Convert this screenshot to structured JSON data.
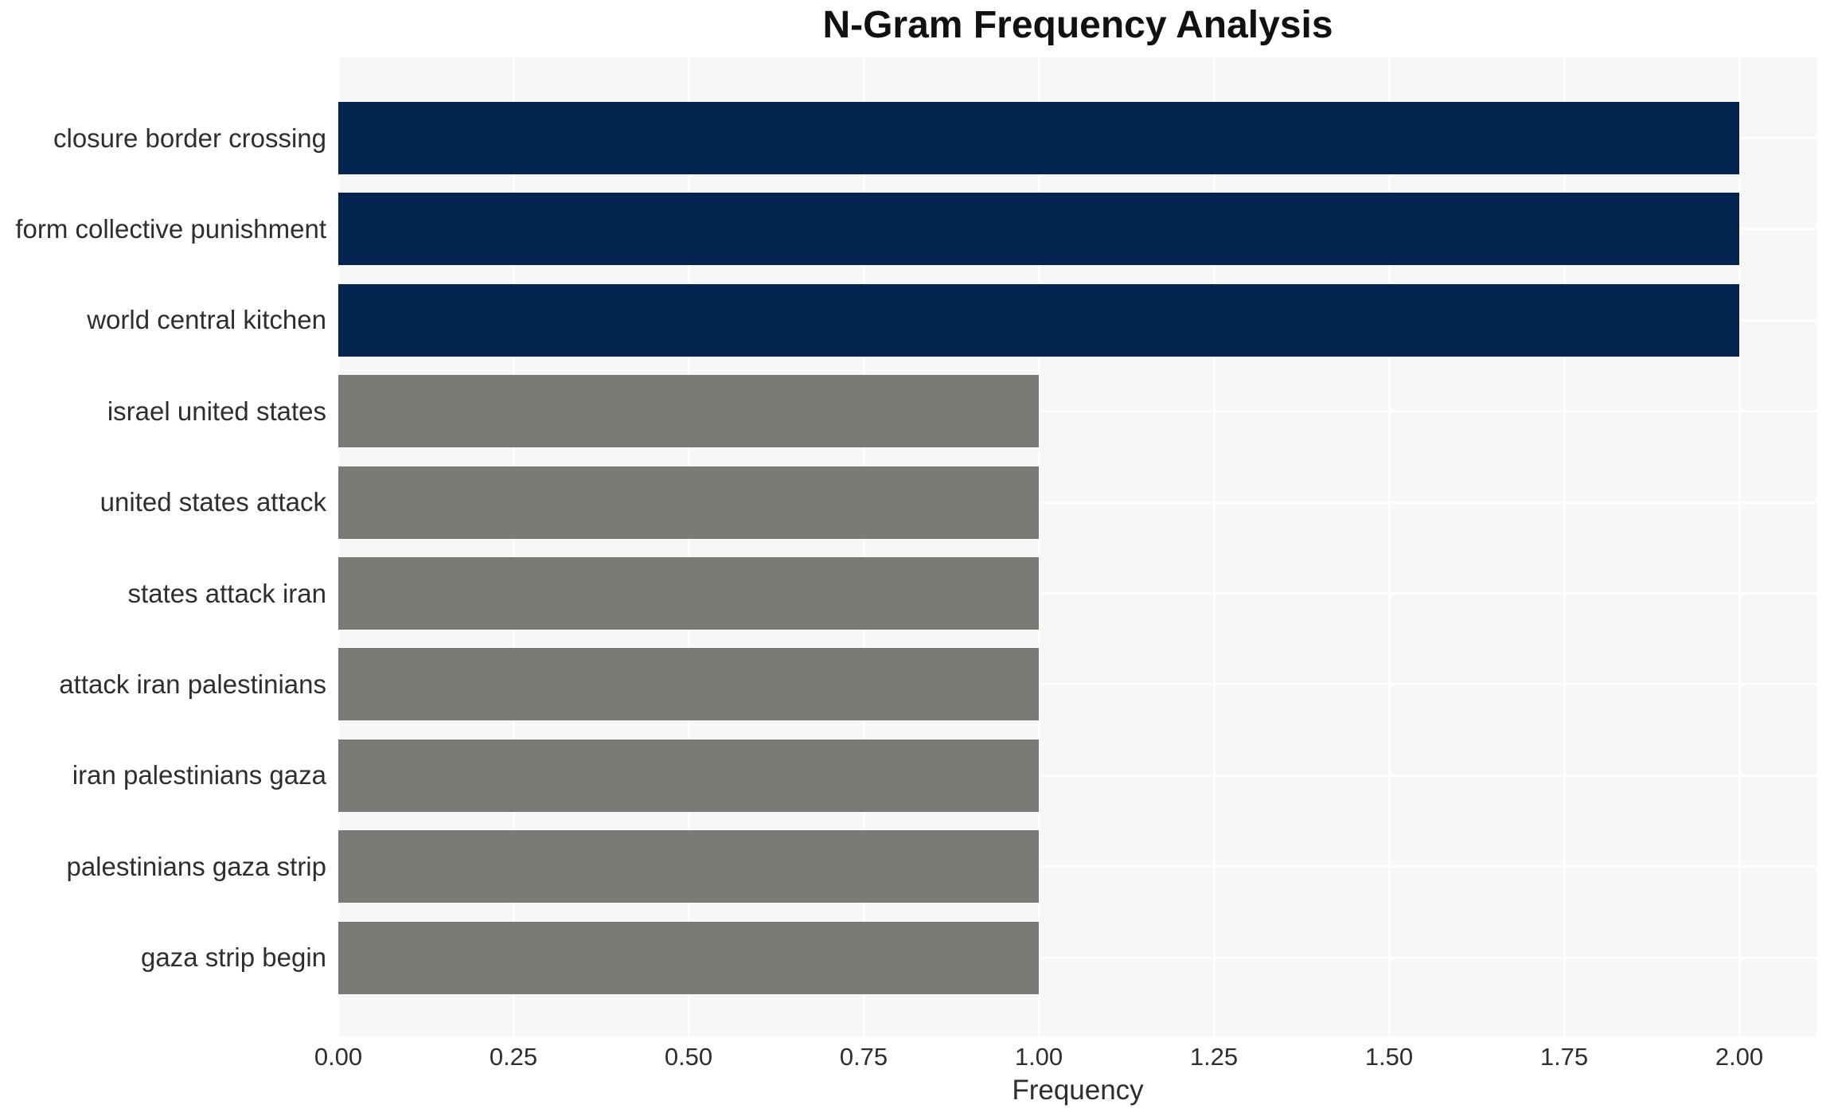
{
  "chart_data": {
    "type": "bar",
    "orientation": "horizontal",
    "title": "N-Gram Frequency Analysis",
    "xlabel": "Frequency",
    "ylabel": "",
    "categories": [
      "closure border crossing",
      "form collective punishment",
      "world central kitchen",
      "israel united states",
      "united states attack",
      "states attack iran",
      "attack iran palestinians",
      "iran palestinians gaza",
      "palestinians gaza strip",
      "gaza strip begin"
    ],
    "values": [
      2,
      2,
      2,
      1,
      1,
      1,
      1,
      1,
      1,
      1
    ],
    "bar_colors": [
      "#02244e",
      "#02244e",
      "#02244e",
      "#7a7a76",
      "#7a7a76",
      "#7a7a76",
      "#7a7a76",
      "#7a7a76",
      "#7a7a76",
      "#7a7a76"
    ],
    "xticks": [
      "0.00",
      "0.25",
      "0.50",
      "0.75",
      "1.00",
      "1.25",
      "1.50",
      "1.75",
      "2.00"
    ],
    "xtick_values": [
      0,
      0.25,
      0.5,
      0.75,
      1,
      1.25,
      1.5,
      1.75,
      2
    ],
    "xlim": [
      0,
      2.11
    ],
    "grid": true,
    "legend": false,
    "colors": {
      "highlight_bar": "#02244e",
      "default_bar": "#7a7a76",
      "plot_background": "#f7f7f7",
      "gridline": "#ffffff",
      "tick_text": "#2e2e2e",
      "title_text": "#111111"
    }
  }
}
